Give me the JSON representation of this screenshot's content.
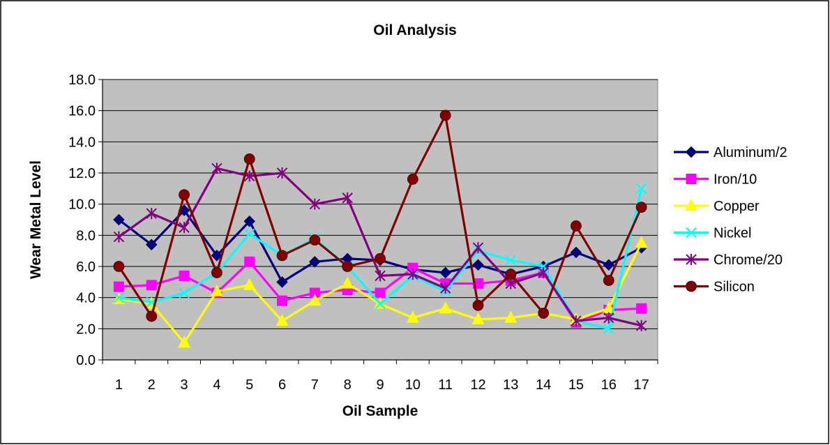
{
  "chart_data": {
    "type": "line",
    "title": "Oil Analysis",
    "xlabel": "Oil Sample",
    "ylabel": "Wear Metal Level",
    "ylim": [
      0,
      18
    ],
    "ytick_step": 2,
    "grid": true,
    "legend_position": "right",
    "plot_background": "#c0c0c0",
    "categories": [
      "1",
      "2",
      "3",
      "4",
      "5",
      "6",
      "7",
      "8",
      "9",
      "10",
      "11",
      "12",
      "13",
      "14",
      "15",
      "16",
      "17"
    ],
    "y_tick_labels": [
      "0.0",
      "2.0",
      "4.0",
      "6.0",
      "8.0",
      "10.0",
      "12.0",
      "14.0",
      "16.0",
      "18.0"
    ],
    "series": [
      {
        "name": "Aluminum/2",
        "color": "#000080",
        "marker": "diamond",
        "values": [
          9.0,
          7.4,
          9.6,
          6.7,
          8.9,
          5.0,
          6.3,
          6.5,
          6.4,
          5.8,
          5.6,
          6.1,
          5.5,
          6.0,
          6.9,
          6.1,
          7.2
        ]
      },
      {
        "name": "Iron/10",
        "color": "#ff00ff",
        "marker": "square",
        "values": [
          4.7,
          4.8,
          5.4,
          4.3,
          6.3,
          3.8,
          4.3,
          4.5,
          4.3,
          5.9,
          4.9,
          4.9,
          5.1,
          5.6,
          2.4,
          3.2,
          3.3
        ]
      },
      {
        "name": "Copper",
        "color": "#ffff00",
        "marker": "triangle",
        "values": [
          3.9,
          3.6,
          1.1,
          4.4,
          4.8,
          2.5,
          3.8,
          4.9,
          3.6,
          2.7,
          3.3,
          2.6,
          2.7,
          3.0,
          2.6,
          3.3,
          7.5
        ]
      },
      {
        "name": "Nickel",
        "color": "#00ffff",
        "marker": "x",
        "values": [
          4.0,
          3.7,
          4.3,
          5.6,
          8.1,
          6.7,
          7.8,
          6.0,
          3.6,
          5.4,
          4.4,
          7.0,
          6.4,
          6.0,
          2.5,
          2.0,
          11.0
        ]
      },
      {
        "name": "Chrome/20",
        "color": "#800080",
        "marker": "asterisk",
        "values": [
          7.9,
          9.4,
          8.5,
          12.3,
          11.8,
          12.0,
          10.0,
          10.4,
          5.4,
          5.5,
          4.6,
          7.2,
          4.9,
          5.6,
          2.5,
          2.7,
          2.2
        ]
      },
      {
        "name": "Silicon",
        "color": "#800000",
        "marker": "circle",
        "values": [
          6.0,
          2.8,
          10.6,
          5.6,
          12.9,
          6.7,
          7.7,
          6.0,
          6.5,
          11.6,
          15.7,
          3.5,
          5.5,
          3.0,
          8.6,
          5.1,
          9.8
        ]
      }
    ]
  }
}
